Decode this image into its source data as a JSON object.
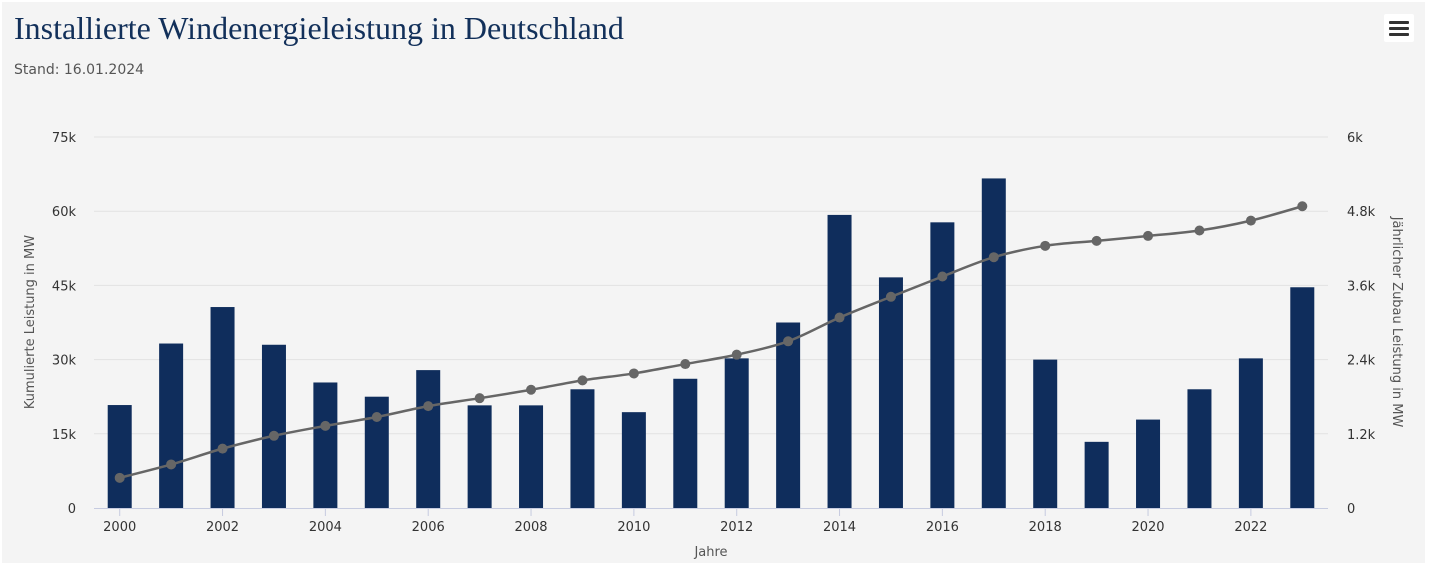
{
  "header": {
    "title": "Installierte Windenergieleistung in Deutschland",
    "subtitle": "Stand: 16.01.2024",
    "menu_icon": "hamburger-menu-icon"
  },
  "colors": {
    "bars": "#0f2d5c",
    "line": "#666666",
    "markers": "#666666",
    "grid": "#e2e2e2",
    "title": "#12305a"
  },
  "chart_data": {
    "type": "bar",
    "title": "Installierte Windenergieleistung in Deutschland",
    "subtitle": "Stand: 16.01.2024",
    "xlabel": "Jahre",
    "ylabel": "Kumulierte Leistung in MW",
    "y2label": "Jährlicher Zubau Leistung in MW",
    "categories": [
      "2000",
      "2001",
      "2002",
      "2003",
      "2004",
      "2005",
      "2006",
      "2007",
      "2008",
      "2009",
      "2010",
      "2011",
      "2012",
      "2013",
      "2014",
      "2015",
      "2016",
      "2017",
      "2018",
      "2019",
      "2020",
      "2021",
      "2022",
      "2023"
    ],
    "x_tick_labels": [
      "2000",
      "2002",
      "2004",
      "2006",
      "2008",
      "2010",
      "2012",
      "2014",
      "2016",
      "2018",
      "2020",
      "2022"
    ],
    "y_tick_labels": [
      "0",
      "15k",
      "30k",
      "45k",
      "60k",
      "75k"
    ],
    "y2_tick_labels": [
      "0",
      "1.2k",
      "2.4k",
      "3.6k",
      "4.8k",
      "6k"
    ],
    "ylim": [
      0,
      75000
    ],
    "y2lim": [
      0,
      6000
    ],
    "grid": true,
    "series": [
      {
        "type": "bar",
        "axis": "right",
        "values": [
          1665,
          2660,
          3250,
          2640,
          2030,
          1800,
          2230,
          1660,
          1660,
          1920,
          1550,
          2090,
          2420,
          3000,
          4740,
          3730,
          4620,
          5330,
          2400,
          1070,
          1430,
          1920,
          2420,
          3570
        ]
      },
      {
        "type": "line",
        "axis": "left",
        "values": [
          6100,
          8800,
          12000,
          14600,
          16600,
          18400,
          20600,
          22200,
          23900,
          25800,
          27200,
          29100,
          31000,
          33700,
          38500,
          42700,
          46800,
          50700,
          53000,
          54000,
          55000,
          56100,
          58100,
          61000
        ]
      }
    ]
  }
}
